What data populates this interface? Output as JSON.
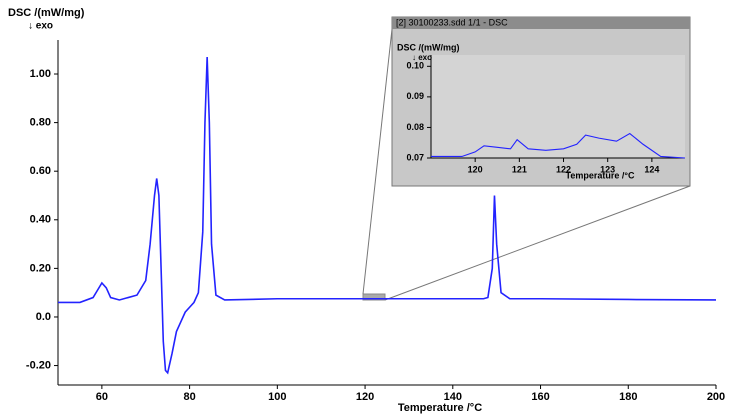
{
  "chart_data": [
    {
      "type": "line",
      "ylabel": "DSC /(mW/mg)",
      "annotation": "↓ exo",
      "xlabel": "Temperature /°C",
      "x": [
        50,
        55,
        58,
        59,
        60,
        61,
        62,
        64,
        68,
        70,
        71,
        72,
        72.5,
        73,
        73.5,
        74,
        74.5,
        75,
        76,
        77,
        78,
        79,
        80,
        81,
        82,
        83,
        83.5,
        84,
        84.5,
        85,
        86,
        88,
        100,
        120,
        140,
        147,
        148,
        149,
        149.5,
        150,
        151,
        153,
        160,
        180,
        200
      ],
      "values": [
        0.06,
        0.06,
        0.08,
        0.11,
        0.14,
        0.12,
        0.08,
        0.07,
        0.09,
        0.15,
        0.3,
        0.5,
        0.57,
        0.5,
        0.2,
        -0.1,
        -0.22,
        -0.23,
        -0.15,
        -0.06,
        -0.02,
        0.02,
        0.04,
        0.06,
        0.1,
        0.35,
        0.8,
        1.07,
        0.8,
        0.3,
        0.09,
        0.07,
        0.075,
        0.075,
        0.075,
        0.075,
        0.08,
        0.2,
        0.5,
        0.3,
        0.1,
        0.075,
        0.075,
        0.072,
        0.07
      ],
      "color": "#2323ff",
      "xlim": [
        50,
        200
      ],
      "xticks": [
        60,
        80,
        100,
        120,
        140,
        160,
        180,
        200
      ],
      "ylim": [
        -0.28,
        1.14
      ],
      "yticks": [
        {
          "value": -0.2,
          "label": "-0.20"
        },
        {
          "value": 0,
          "label": "0.0"
        },
        {
          "value": 0.2,
          "label": "0.20"
        },
        {
          "value": 0.4,
          "label": "0.40"
        },
        {
          "value": 0.6,
          "label": "0.60"
        },
        {
          "value": 0.8,
          "label": "0.80"
        },
        {
          "value": 1,
          "label": "1.00"
        }
      ]
    },
    {
      "type": "line",
      "title": "[2] 30100233.sdd 1/1 - DSC",
      "ylabel": "DSC /(mW/mg)",
      "annotation": "↓ exo",
      "xlabel": "Temperature /°C",
      "x": [
        119,
        119.7,
        120,
        120.2,
        120.5,
        120.8,
        120.95,
        121.2,
        121.6,
        122,
        122.3,
        122.5,
        122.8,
        123.2,
        123.5,
        123.8,
        124.2,
        124.75
      ],
      "values": [
        0.0705,
        0.0705,
        0.072,
        0.074,
        0.0735,
        0.073,
        0.076,
        0.073,
        0.0725,
        0.073,
        0.0745,
        0.0775,
        0.0765,
        0.0755,
        0.078,
        0.0745,
        0.0705,
        0.07
      ],
      "color": "#2323ff",
      "xlim": [
        119,
        124.75
      ],
      "xticks": [
        120,
        121,
        122,
        123,
        124
      ],
      "ylim": [
        0.07,
        0.1037
      ],
      "yticks": [
        0.07,
        0.08,
        0.09,
        {
          "value": 0.1,
          "label": "0.10"
        }
      ]
    }
  ]
}
